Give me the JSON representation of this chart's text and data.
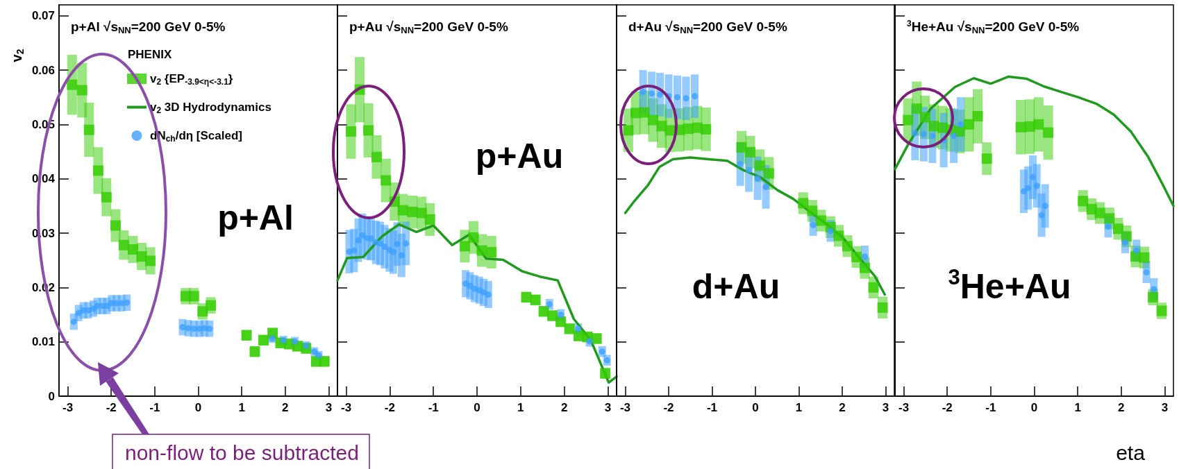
{
  "chart_data": [
    {
      "type": "scatter",
      "title": "p+Al √s$_{NN}$=200 GeV 0-5%",
      "ylabel": "v$_{2}$",
      "legend_title": "PHENIX",
      "legend": "top right",
      "annotations": [
        "p+Al",
        "non-flow to be subtracted"
      ],
      "xlim": [
        -3.2,
        3.2
      ],
      "xticks": [
        -3,
        -2,
        -1,
        0,
        1,
        2,
        3
      ],
      "ylim": [
        0,
        0.072
      ],
      "yticks": [
        0,
        0.01,
        0.02,
        0.03,
        0.04,
        0.05,
        0.06,
        0.07
      ],
      "series": [
        {
          "name": "v$_{2}$ {EP$_{-3.9<η<-3.1}$}",
          "color": "#33cc00",
          "marker": "square",
          "x": [
            -2.9,
            -2.67,
            -2.51,
            -2.3,
            -2.11,
            -1.9,
            -1.71,
            -1.5,
            -1.3,
            -1.1,
            -0.29,
            -0.1,
            0.1,
            0.29,
            1.11,
            1.3,
            1.5,
            1.71,
            1.89,
            2.09,
            2.28,
            2.48,
            2.71,
            2.9
          ],
          "values": [
            0.0573,
            0.0563,
            0.049,
            0.0415,
            0.0366,
            0.0314,
            0.0278,
            0.027,
            0.0257,
            0.0249,
            0.0184,
            0.0184,
            0.0156,
            0.0167,
            0.0112,
            0.0082,
            0.0103,
            0.0116,
            0.0098,
            0.0096,
            0.0092,
            0.0088,
            0.0064,
            0.0064
          ],
          "errors": [
            0.0055,
            0.005,
            0.005,
            0.0043,
            0.0035,
            0.003,
            0.0027,
            0.0025,
            0.0025,
            0.0025,
            0.0015,
            0.0015,
            0.0015,
            0.0015,
            0.001,
            0.001,
            0.001,
            0.001,
            0.001,
            0.001,
            0.001,
            0.001,
            0.001,
            0.001
          ]
        },
        {
          "name": "v$_{2}$ 3D Hydrodynamics",
          "type": "line",
          "color": "#1f9a1f",
          "marker": "none"
        },
        {
          "name": "dN$_{ch}$/dη [Scaled]",
          "color": "#3fa0ff",
          "marker": "circle",
          "x": [
            -2.86,
            -2.75,
            -2.64,
            -2.53,
            -2.41,
            -2.32,
            -2.2,
            -2.1,
            -1.99,
            -1.88,
            -1.76,
            -1.64,
            -0.36,
            -0.23,
            -0.1,
            0.03,
            0.14,
            0.26,
            1.7,
            1.96,
            2.22,
            2.48,
            2.67,
            2.77
          ],
          "values": [
            0.0137,
            0.0153,
            0.0158,
            0.0158,
            0.0161,
            0.0166,
            0.0166,
            0.0166,
            0.0171,
            0.0171,
            0.0171,
            0.0172,
            0.0127,
            0.0125,
            0.0124,
            0.0124,
            0.0125,
            0.0124,
            0.0106,
            0.0103,
            0.0101,
            0.0093,
            0.0082,
            0.0075
          ],
          "errors": [
            0.0015,
            0.0015,
            0.0015,
            0.0015,
            0.0015,
            0.0015,
            0.0015,
            0.0015,
            0.0015,
            0.0015,
            0.0015,
            0.0015,
            0.0015,
            0.0015,
            0.0015,
            0.0015,
            0.0015,
            0.0015,
            0.0008,
            0.0008,
            0.0008,
            0.0008,
            0.0008,
            0.0008
          ]
        }
      ]
    },
    {
      "type": "scatter",
      "title": "p+Au √s$_{NN}$=200 GeV 0-5%",
      "annotations": [
        "p+Au"
      ],
      "tick_labels": "x",
      "xlim": [
        -3.2,
        3.2
      ],
      "xticks": [
        -3,
        -2,
        -1,
        0,
        1,
        2,
        3
      ],
      "ylim": [
        0,
        0.072
      ],
      "yticks": [
        0,
        0.01,
        0.02,
        0.03,
        0.04,
        0.05,
        0.06,
        0.07
      ],
      "series": [
        {
          "color": "#33cc00",
          "marker": "square",
          "x": [
            -2.89,
            -2.69,
            -2.49,
            -2.3,
            -2.09,
            -1.89,
            -1.7,
            -1.48,
            -1.27,
            -1.08,
            -0.28,
            -0.08,
            0.11,
            0.33,
            1.13,
            1.34,
            1.53,
            1.73,
            1.92,
            2.12,
            2.33,
            2.53,
            2.74,
            2.94
          ],
          "values": [
            0.0487,
            0.0564,
            0.0489,
            0.044,
            0.0397,
            0.0358,
            0.0342,
            0.0339,
            0.0337,
            0.0325,
            0.0276,
            0.0292,
            0.0268,
            0.0265,
            0.0182,
            0.0177,
            0.0156,
            0.0148,
            0.0137,
            0.0124,
            0.0111,
            0.0109,
            0.0106,
            0.0042
          ],
          "errors": [
            0.005,
            0.006,
            0.005,
            0.004,
            0.004,
            0.0035,
            0.003,
            0.003,
            0.003,
            0.003,
            0.003,
            0.003,
            0.003,
            0.003,
            0.001,
            0.001,
            0.001,
            0.001,
            0.001,
            0.001,
            0.001,
            0.001,
            0.001,
            0.001
          ]
        },
        {
          "type": "line",
          "color": "#1f9a1f",
          "marker": "none",
          "x": [
            -3.2,
            -2.98,
            -2.61,
            -2.18,
            -1.79,
            -1.39,
            -1,
            -0.57,
            -0.18,
            0.21,
            0.6,
            1.03,
            1.44,
            1.85,
            2.22,
            2.61,
            3.02,
            3.2
          ],
          "values": [
            0.0213,
            0.0254,
            0.0256,
            0.0294,
            0.0316,
            0.0302,
            0.0314,
            0.0278,
            0.0297,
            0.0253,
            0.0251,
            0.023,
            0.022,
            0.0213,
            0.0142,
            0.0103,
            0.0025,
            0.0036
          ]
        },
        {
          "color": "#3fa0ff",
          "marker": "circle",
          "x": [
            -2.93,
            -2.82,
            -2.72,
            -2.63,
            -2.52,
            -2.43,
            -2.32,
            -2.22,
            -2.12,
            -2.01,
            -1.92,
            -1.83,
            -1.73,
            -1.63,
            -0.26,
            -0.16,
            -0.06,
            0.05,
            0.15,
            0.26,
            1.66,
            1.92,
            2.32,
            2.58,
            2.87,
            2.98
          ],
          "values": [
            0.0266,
            0.0268,
            0.0287,
            0.0296,
            0.0291,
            0.029,
            0.0283,
            0.0281,
            0.0275,
            0.0269,
            0.0265,
            0.028,
            0.0259,
            0.0281,
            0.0207,
            0.0203,
            0.0198,
            0.0195,
            0.0191,
            0.0187,
            0.0169,
            0.015,
            0.0124,
            0.0101,
            0.0082,
            0.0066
          ],
          "errors": [
            0.004,
            0.004,
            0.004,
            0.004,
            0.004,
            0.004,
            0.004,
            0.004,
            0.004,
            0.004,
            0.004,
            0.004,
            0.004,
            0.004,
            0.0025,
            0.0025,
            0.0025,
            0.0025,
            0.0025,
            0.0025,
            0.001,
            0.001,
            0.001,
            0.001,
            0.001,
            0.001
          ]
        }
      ]
    },
    {
      "type": "scatter",
      "title": "d+Au √s$_{NN}$=200 GeV 0-5%",
      "annotations": [
        "d+Au"
      ],
      "tick_labels": "x",
      "xlim": [
        -3.2,
        3.2
      ],
      "xticks": [
        -3,
        -2,
        -1,
        0,
        1,
        2,
        3
      ],
      "ylim": [
        0,
        0.072
      ],
      "yticks": [
        0,
        0.01,
        0.02,
        0.03,
        0.04,
        0.05,
        0.06,
        0.07
      ],
      "series": [
        {
          "color": "#33cc00",
          "marker": "square",
          "x": [
            -2.93,
            -2.76,
            -2.56,
            -2.36,
            -2.16,
            -1.97,
            -1.75,
            -1.55,
            -1.34,
            -1.14,
            -0.32,
            -0.12,
            0.1,
            0.31,
            1.1,
            1.31,
            1.51,
            1.73,
            1.92,
            2.12,
            2.33,
            2.52,
            2.72,
            2.93
          ],
          "values": [
            0.0489,
            0.0521,
            0.0522,
            0.0508,
            0.0497,
            0.0489,
            0.049,
            0.0492,
            0.0494,
            0.0491,
            0.0458,
            0.0449,
            0.0424,
            0.041,
            0.0355,
            0.0341,
            0.0323,
            0.0311,
            0.0295,
            0.0276,
            0.0256,
            0.0236,
            0.02,
            0.0163
          ],
          "errors": [
            0.004,
            0.004,
            0.004,
            0.004,
            0.004,
            0.004,
            0.004,
            0.004,
            0.004,
            0.004,
            0.003,
            0.003,
            0.003,
            0.003,
            0.002,
            0.002,
            0.002,
            0.002,
            0.002,
            0.002,
            0.002,
            0.002,
            0.002,
            0.002
          ]
        },
        {
          "type": "line",
          "color": "#1f9a1f",
          "marker": "none",
          "x": [
            -3,
            -2.79,
            -2.47,
            -2.21,
            -1.9,
            -1.5,
            -1.08,
            -0.65,
            -0.28,
            0.11,
            0.51,
            0.87,
            1.23,
            1.63,
            2.02,
            2.42,
            2.75,
            2.98
          ],
          "values": [
            0.0337,
            0.0359,
            0.0389,
            0.0422,
            0.0436,
            0.0439,
            0.0436,
            0.0433,
            0.0416,
            0.0403,
            0.0379,
            0.0363,
            0.0341,
            0.0317,
            0.0291,
            0.0252,
            0.0221,
            0.0187
          ]
        },
        {
          "color": "#3fa0ff",
          "marker": "circle",
          "x": [
            -2.59,
            -2.39,
            -2.2,
            -2,
            -1.8,
            -1.6,
            -1.4,
            -0.35,
            -0.15,
            0.05,
            0.24,
            1.33,
            1.73,
            2.52
          ],
          "values": [
            0.056,
            0.0557,
            0.0555,
            0.0552,
            0.055,
            0.0548,
            0.0552,
            0.0427,
            0.0416,
            0.0401,
            0.0385,
            0.0315,
            0.0304,
            0.0257
          ],
          "errors": [
            0.004,
            0.004,
            0.004,
            0.004,
            0.004,
            0.004,
            0.004,
            0.004,
            0.004,
            0.004,
            0.004,
            0.002,
            0.002,
            0.002
          ]
        }
      ]
    },
    {
      "type": "scatter",
      "title": "$^{3}$He+Au √s$_{NN}$=200 GeV 0-5%",
      "xlabel": "eta",
      "annotations": [
        "$^{3}$He+Au"
      ],
      "tick_labels": "x",
      "xlim": [
        -3.2,
        3.2
      ],
      "xticks": [
        -3,
        -2,
        -1,
        0,
        1,
        2,
        3
      ],
      "ylim": [
        0,
        0.072
      ],
      "yticks": [
        0,
        0.01,
        0.02,
        0.03,
        0.04,
        0.05,
        0.06,
        0.07
      ],
      "series": [
        {
          "color": "#33cc00",
          "marker": "square",
          "x": [
            -2.9,
            -2.7,
            -2.51,
            -2.31,
            -2.11,
            -1.92,
            -1.71,
            -1.5,
            -1.3,
            -1.09,
            -0.31,
            -0.1,
            0.1,
            0.32,
            1.12,
            1.32,
            1.51,
            1.73,
            1.93,
            2.12,
            2.33,
            2.53,
            2.73,
            2.93
          ],
          "values": [
            0.0508,
            0.0529,
            0.0513,
            0.0497,
            0.0494,
            0.049,
            0.0487,
            0.05,
            0.0515,
            0.0437,
            0.0495,
            0.0496,
            0.05,
            0.0485,
            0.0359,
            0.0344,
            0.0337,
            0.0327,
            0.0308,
            0.0294,
            0.0257,
            0.0255,
            0.0182,
            0.0157
          ],
          "errors": [
            0.004,
            0.005,
            0.004,
            0.004,
            0.004,
            0.004,
            0.004,
            0.005,
            0.005,
            0.003,
            0.005,
            0.005,
            0.005,
            0.005,
            0.002,
            0.002,
            0.002,
            0.002,
            0.002,
            0.002,
            0.002,
            0.002,
            0.0015,
            0.0015
          ]
        },
        {
          "type": "line",
          "color": "#1f9a1f",
          "marker": "none",
          "x": [
            -3.2,
            -2.9,
            -2.38,
            -1.82,
            -1.39,
            -1,
            -0.59,
            -0.17,
            0.22,
            0.61,
            1.01,
            1.43,
            1.83,
            2.22,
            2.62,
            2.95,
            3.2
          ],
          "values": [
            0.0418,
            0.0463,
            0.0529,
            0.0569,
            0.0585,
            0.0575,
            0.0588,
            0.0584,
            0.057,
            0.056,
            0.055,
            0.0538,
            0.0518,
            0.0487,
            0.044,
            0.039,
            0.035
          ]
        },
        {
          "color": "#3fa0ff",
          "marker": "circle",
          "x": [
            -2.74,
            -2.54,
            -2.34,
            -2.08,
            -1.85,
            -1.69,
            -0.24,
            -0.14,
            -0.03,
            0.06,
            0.17,
            0.25,
            1.7,
            2.09,
            2.35,
            2.58,
            2.75
          ],
          "values": [
            0.0484,
            0.0482,
            0.0479,
            0.0471,
            0.0479,
            0.05,
            0.0377,
            0.0383,
            0.0403,
            0.0387,
            0.0333,
            0.035,
            0.0312,
            0.0283,
            0.0268,
            0.0228,
            0.0197
          ],
          "errors": [
            0.005,
            0.005,
            0.005,
            0.005,
            0.005,
            0.005,
            0.004,
            0.004,
            0.004,
            0.004,
            0.004,
            0.004,
            0.002,
            0.002,
            0.002,
            0.002,
            0.002
          ]
        }
      ]
    }
  ]
}
